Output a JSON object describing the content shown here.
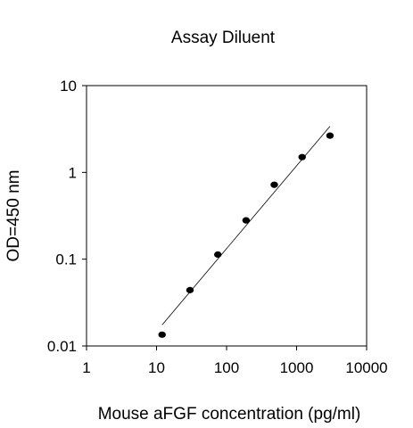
{
  "chart_data": {
    "type": "scatter",
    "title": "Assay Diluent",
    "xlabel": "Mouse aFGF concentration (pg/ml)",
    "ylabel": "OD=450 nm",
    "xscale": "log",
    "yscale": "log",
    "xlim": [
      1,
      10000
    ],
    "ylim": [
      0.01,
      10
    ],
    "xticks": [
      {
        "value": 1,
        "label": "1"
      },
      {
        "value": 10,
        "label": "10"
      },
      {
        "value": 100,
        "label": "100"
      },
      {
        "value": 1000,
        "label": "1000"
      },
      {
        "value": 10000,
        "label": "10000"
      }
    ],
    "yticks": [
      {
        "value": 0.01,
        "label": "0.01"
      },
      {
        "value": 0.1,
        "label": "0.1"
      },
      {
        "value": 1,
        "label": "1"
      },
      {
        "value": 10,
        "label": "10"
      }
    ],
    "grid": false,
    "series": [
      {
        "marker": "filled-circle",
        "color": "#000000",
        "points": [
          {
            "x": 12,
            "y": 0.0135
          },
          {
            "x": 30,
            "y": 0.044
          },
          {
            "x": 75,
            "y": 0.113
          },
          {
            "x": 190,
            "y": 0.28
          },
          {
            "x": 480,
            "y": 0.72
          },
          {
            "x": 1200,
            "y": 1.5
          },
          {
            "x": 3000,
            "y": 2.65
          }
        ]
      }
    ],
    "trendline": {
      "type": "linear-fit-loglog",
      "color": "#000000",
      "points": [
        {
          "x": 12,
          "y": 0.0175
        },
        {
          "x": 3000,
          "y": 3.4
        }
      ]
    }
  }
}
